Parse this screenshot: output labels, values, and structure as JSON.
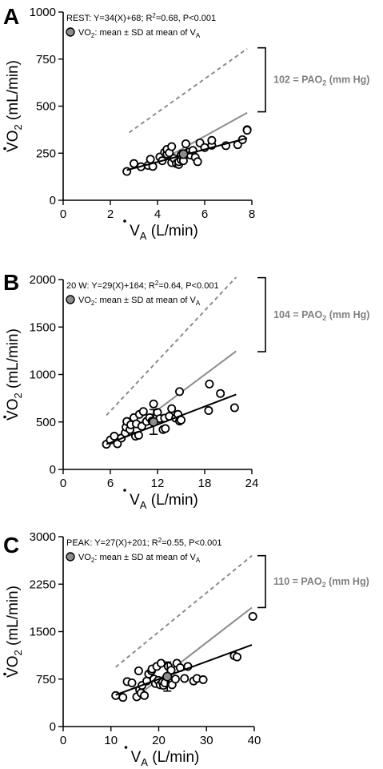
{
  "colors": {
    "axis": "#000000",
    "regression": "#000000",
    "grey_line": "#8c8c8c",
    "dashed_line": "#8c8c8c",
    "pao2_text": "#7f7f7f",
    "mean_marker": "#8c8c8c"
  },
  "chart_data": [
    {
      "type": "scatter",
      "panel": "A",
      "ylabel_main": "VO",
      "ylabel_sub": "2",
      "ylabel_unit": " (mL/min)",
      "xlabel_main": "V",
      "xlabel_sub": "A",
      "xlabel_unit": " (L/min)",
      "xlim": [
        0,
        8
      ],
      "ylim": [
        0,
        1000
      ],
      "xticks": [
        0,
        2,
        4,
        6,
        8
      ],
      "yticks": [
        0,
        250,
        500,
        750,
        1000
      ],
      "annotation_pre": "REST: Y=34(X)+68; R",
      "annotation_sup": "2",
      "annotation_post": "=0.68, P<0.001",
      "legend_pre": "VO",
      "legend_sub": "2",
      "legend_mid": ": mean ± SD at mean of V",
      "legend_sub2": "A",
      "pao2_pre": "102 = PAO",
      "pao2_sub": "2",
      "pao2_post": " (mm Hg)",
      "bracket_y": [
        810,
        470
      ],
      "regression": {
        "x0": 2.7,
        "y0": 160,
        "x1": 7.8,
        "y1": 330
      },
      "grey_line": {
        "x0": 4.2,
        "y0": 215,
        "x1": 7.8,
        "y1": 465
      },
      "dashed_line": {
        "x0": 2.8,
        "y0": 360,
        "x1": 7.8,
        "y1": 805
      },
      "mean": {
        "x": 5.1,
        "y": 245,
        "sd": 20
      },
      "points": [
        [
          2.7,
          153
        ],
        [
          3.0,
          195
        ],
        [
          3.3,
          178
        ],
        [
          3.6,
          185
        ],
        [
          3.7,
          218
        ],
        [
          3.8,
          180
        ],
        [
          4.1,
          230
        ],
        [
          4.2,
          210
        ],
        [
          4.3,
          255
        ],
        [
          4.4,
          245
        ],
        [
          4.4,
          270
        ],
        [
          4.5,
          252
        ],
        [
          4.6,
          200
        ],
        [
          4.6,
          285
        ],
        [
          4.7,
          222
        ],
        [
          4.8,
          195
        ],
        [
          4.9,
          190
        ],
        [
          4.9,
          205
        ],
        [
          5.0,
          215
        ],
        [
          5.0,
          240
        ],
        [
          5.1,
          210
        ],
        [
          5.2,
          300
        ],
        [
          5.3,
          255
        ],
        [
          5.4,
          240
        ],
        [
          5.5,
          265
        ],
        [
          5.6,
          228
        ],
        [
          5.7,
          205
        ],
        [
          5.8,
          305
        ],
        [
          6.0,
          280
        ],
        [
          6.3,
          292
        ],
        [
          6.3,
          318
        ],
        [
          6.9,
          290
        ],
        [
          7.4,
          295
        ],
        [
          7.6,
          322
        ],
        [
          7.8,
          375
        ],
        [
          7.8,
          372
        ]
      ]
    },
    {
      "type": "scatter",
      "panel": "B",
      "ylabel_main": "VO",
      "ylabel_sub": "2",
      "ylabel_unit": " (mL/min)",
      "xlabel_main": "V",
      "xlabel_sub": "A",
      "xlabel_unit": " (L/min)",
      "xlim": [
        0,
        24
      ],
      "ylim": [
        0,
        2000
      ],
      "xticks": [
        0,
        6,
        12,
        18,
        24
      ],
      "yticks": [
        0,
        500,
        1000,
        1500,
        2000
      ],
      "annotation_pre": "20 W: Y=29(X)+164; R",
      "annotation_sup": "2",
      "annotation_post": "=0.64, P<0.001",
      "legend_pre": "VO",
      "legend_sub": "2",
      "legend_mid": ": mean ± SD at mean of V",
      "legend_sub2": "A",
      "pao2_pre": "104 = PAO",
      "pao2_sub": "2",
      "pao2_post": " (mm Hg)",
      "bracket_y": [
        2020,
        1240
      ],
      "regression": {
        "x0": 5.5,
        "y0": 265,
        "x1": 22,
        "y1": 790
      },
      "grey_line": {
        "x0": 8.5,
        "y0": 410,
        "x1": 22,
        "y1": 1245
      },
      "dashed_line": {
        "x0": 5.5,
        "y0": 570,
        "x1": 22,
        "y1": 2025
      },
      "mean": {
        "x": 11.5,
        "y": 500,
        "sd": 130
      },
      "points": [
        [
          5.5,
          265
        ],
        [
          6.0,
          310
        ],
        [
          6.5,
          350
        ],
        [
          6.9,
          270
        ],
        [
          7.4,
          330
        ],
        [
          7.9,
          385
        ],
        [
          8.0,
          445
        ],
        [
          8.1,
          505
        ],
        [
          8.5,
          420
        ],
        [
          8.6,
          470
        ],
        [
          9.0,
          545
        ],
        [
          9.2,
          350
        ],
        [
          9.3,
          480
        ],
        [
          9.6,
          360
        ],
        [
          9.7,
          580
        ],
        [
          10.0,
          455
        ],
        [
          10.2,
          610
        ],
        [
          10.6,
          505
        ],
        [
          11.0,
          545
        ],
        [
          11.3,
          510
        ],
        [
          11.5,
          690
        ],
        [
          12.0,
          600
        ],
        [
          12.3,
          535
        ],
        [
          12.7,
          420
        ],
        [
          12.9,
          540
        ],
        [
          13.0,
          430
        ],
        [
          13.5,
          560
        ],
        [
          13.8,
          640
        ],
        [
          14.3,
          540
        ],
        [
          14.6,
          580
        ],
        [
          14.8,
          510
        ],
        [
          14.8,
          820
        ],
        [
          15.0,
          520
        ],
        [
          18.5,
          620
        ],
        [
          18.6,
          900
        ],
        [
          20.0,
          800
        ],
        [
          21.8,
          650
        ]
      ]
    },
    {
      "type": "scatter",
      "panel": "C",
      "ylabel_main": "VO",
      "ylabel_sub": "2",
      "ylabel_unit": " (mL/min)",
      "xlabel_main": "V",
      "xlabel_sub": "A",
      "xlabel_unit": " (L/min)",
      "xlim": [
        0,
        40
      ],
      "ylim": [
        0,
        3000
      ],
      "xticks": [
        0,
        10,
        20,
        30,
        40
      ],
      "yticks": [
        0,
        750,
        1500,
        2250,
        3000
      ],
      "annotation_pre": "PEAK: Y=27(X)+201; R",
      "annotation_sup": "2",
      "annotation_post": "=0.55, P<0.001",
      "legend_pre": "VO",
      "legend_sub": "2",
      "legend_mid": ": mean ± SD at mean of V",
      "legend_sub2": "A",
      "pao2_pre": "110 = PAO",
      "pao2_sub": "2",
      "pao2_post": " (mm Hg)",
      "bracket_y": [
        2700,
        1880
      ],
      "regression": {
        "x0": 11,
        "y0": 500,
        "x1": 39.5,
        "y1": 1290
      },
      "grey_line": {
        "x0": 17,
        "y0": 570,
        "x1": 39.5,
        "y1": 1880
      },
      "dashed_line": {
        "x0": 11,
        "y0": 940,
        "x1": 39.5,
        "y1": 2700
      },
      "mean": {
        "x": 21.8,
        "y": 790,
        "sd": 230
      },
      "points": [
        [
          11.0,
          490
        ],
        [
          12.5,
          460
        ],
        [
          13.4,
          710
        ],
        [
          14.4,
          690
        ],
        [
          15.4,
          470
        ],
        [
          15.8,
          880
        ],
        [
          16.0,
          580
        ],
        [
          16.3,
          530
        ],
        [
          16.5,
          650
        ],
        [
          17.0,
          490
        ],
        [
          17.5,
          720
        ],
        [
          17.9,
          830
        ],
        [
          18.5,
          880
        ],
        [
          18.6,
          910
        ],
        [
          19.0,
          750
        ],
        [
          19.3,
          680
        ],
        [
          19.6,
          950
        ],
        [
          19.9,
          730
        ],
        [
          20.3,
          660
        ],
        [
          20.5,
          1000
        ],
        [
          20.8,
          700
        ],
        [
          21.0,
          650
        ],
        [
          21.3,
          690
        ],
        [
          22.0,
          950
        ],
        [
          22.6,
          890
        ],
        [
          22.8,
          660
        ],
        [
          23.5,
          750
        ],
        [
          23.8,
          1000
        ],
        [
          24.5,
          930
        ],
        [
          25.4,
          760
        ],
        [
          26.1,
          950
        ],
        [
          27.3,
          720
        ],
        [
          28.0,
          760
        ],
        [
          29.3,
          740
        ],
        [
          35.8,
          1120
        ],
        [
          36.4,
          1100
        ],
        [
          39.7,
          1740
        ]
      ]
    }
  ]
}
